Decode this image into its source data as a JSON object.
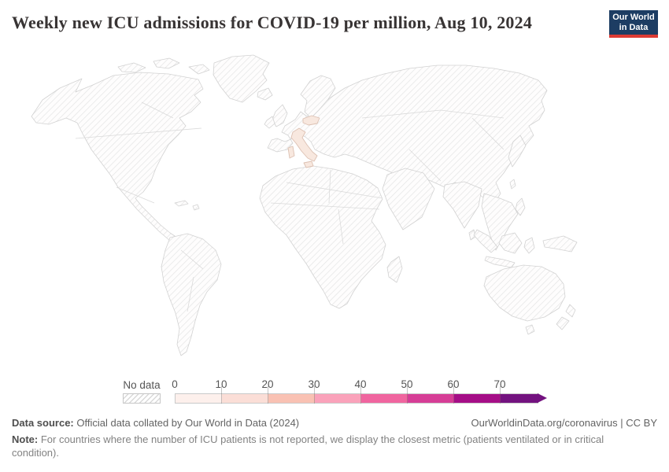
{
  "header": {
    "title": "Weekly new ICU admissions for COVID-19 per million, Aug 10, 2024",
    "logo": {
      "line1": "Our World",
      "line2": "in Data",
      "bg_color": "#1d3d63",
      "accent_color": "#dc3b34"
    }
  },
  "chart_data": {
    "type": "choropleth_map",
    "title": "Weekly new ICU admissions for COVID-19 per million",
    "date": "Aug 10, 2024",
    "legend": {
      "no_data_label": "No data",
      "tick_labels": [
        "0",
        "10",
        "20",
        "30",
        "40",
        "50",
        "60",
        "70"
      ],
      "open_ended_arrow": true,
      "bands": [
        {
          "range": "0-10",
          "color": "#fdf0ec"
        },
        {
          "range": "10-20",
          "color": "#fbded7"
        },
        {
          "range": "20-30",
          "color": "#f9c1b3"
        },
        {
          "range": "30-40",
          "color": "#faa2ba"
        },
        {
          "range": "40-50",
          "color": "#f0659f"
        },
        {
          "range": "50-60",
          "color": "#d63d96"
        },
        {
          "range": "60-70",
          "color": "#a50e87"
        },
        {
          "range": "70+",
          "color": "#73127f"
        }
      ]
    },
    "countries_with_data": [
      {
        "name": "Italy",
        "value_band": "0-10",
        "color": "#f8e8df",
        "border_color": "#dcc0b2"
      },
      {
        "name": "Czechia",
        "value_band": "0-10",
        "color": "#f8e8df",
        "border_color": "#dcc0b2"
      }
    ],
    "no_data_style": "hatched gray diagonal stripes for all other countries"
  },
  "footer": {
    "datasource_label": "Data source:",
    "datasource_text": " Official data collated by Our World in Data (2024)",
    "rights": "OurWorldinData.org/coronavirus | CC BY",
    "note_label": "Note:",
    "note_text": " For countries where the number of ICU patients is not reported, we display the closest metric (patients ventilated or in critical condition)."
  }
}
